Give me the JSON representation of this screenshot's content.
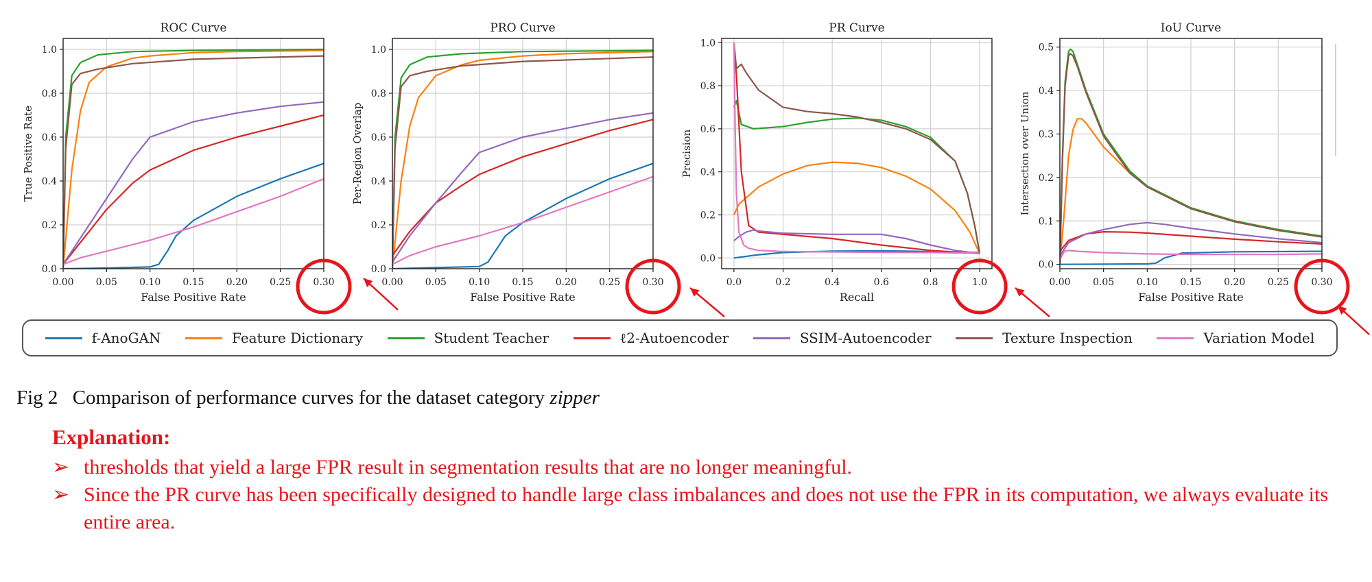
{
  "chart_data": [
    {
      "type": "line",
      "title": "ROC Curve",
      "xlabel": "False Positive Rate",
      "ylabel": "True Positive Rate",
      "xlim": [
        0,
        0.3
      ],
      "ylim": [
        0,
        1.05
      ],
      "xticks": [
        "0.00",
        "0.05",
        "0.10",
        "0.15",
        "0.20",
        "0.25",
        "0.30"
      ],
      "xtick_values": [
        0,
        0.05,
        0.1,
        0.15,
        0.2,
        0.25,
        0.3
      ],
      "yticks": [
        "0.0",
        "0.2",
        "0.4",
        "0.6",
        "0.8",
        "1.0"
      ],
      "ytick_values": [
        0,
        0.2,
        0.4,
        0.6,
        0.8,
        1.0
      ],
      "grid": true,
      "highlight_tick": "0.30",
      "series": [
        {
          "name": "f-AnoGAN",
          "x": [
            0,
            0.05,
            0.1,
            0.11,
            0.12,
            0.13,
            0.15,
            0.2,
            0.25,
            0.3
          ],
          "y": [
            0,
            0.003,
            0.008,
            0.02,
            0.08,
            0.15,
            0.22,
            0.33,
            0.41,
            0.48
          ]
        },
        {
          "name": "Feature Dictionary",
          "x": [
            0,
            0.01,
            0.02,
            0.03,
            0.05,
            0.08,
            0.1,
            0.15,
            0.2,
            0.3
          ],
          "y": [
            0,
            0.45,
            0.72,
            0.85,
            0.92,
            0.96,
            0.97,
            0.985,
            0.99,
            0.995
          ]
        },
        {
          "name": "Student Teacher",
          "x": [
            0,
            0.003,
            0.01,
            0.02,
            0.04,
            0.08,
            0.15,
            0.3
          ],
          "y": [
            0,
            0.6,
            0.88,
            0.94,
            0.975,
            0.99,
            0.995,
            1.0
          ]
        },
        {
          "name": "ℓ2-Autoencoder",
          "x": [
            0,
            0.02,
            0.05,
            0.08,
            0.1,
            0.15,
            0.2,
            0.25,
            0.3
          ],
          "y": [
            0.02,
            0.12,
            0.27,
            0.39,
            0.45,
            0.54,
            0.6,
            0.65,
            0.7
          ]
        },
        {
          "name": "SSIM-Autoencoder",
          "x": [
            0,
            0.02,
            0.05,
            0.08,
            0.1,
            0.15,
            0.2,
            0.25,
            0.3
          ],
          "y": [
            0.02,
            0.14,
            0.32,
            0.5,
            0.6,
            0.67,
            0.71,
            0.74,
            0.76
          ]
        },
        {
          "name": "Texture Inspection",
          "x": [
            0,
            0.003,
            0.01,
            0.02,
            0.04,
            0.08,
            0.15,
            0.3
          ],
          "y": [
            0,
            0.55,
            0.84,
            0.89,
            0.91,
            0.935,
            0.955,
            0.97
          ]
        },
        {
          "name": "Variation Model",
          "x": [
            0,
            0.02,
            0.05,
            0.1,
            0.15,
            0.2,
            0.25,
            0.3
          ],
          "y": [
            0.02,
            0.05,
            0.08,
            0.13,
            0.19,
            0.26,
            0.33,
            0.41
          ]
        }
      ]
    },
    {
      "type": "line",
      "title": "PRO Curve",
      "xlabel": "False Positive Rate",
      "ylabel": "Per-Region Overlap",
      "xlim": [
        0,
        0.3
      ],
      "ylim": [
        0,
        1.05
      ],
      "xticks": [
        "0.00",
        "0.05",
        "0.10",
        "0.15",
        "0.20",
        "0.25",
        "0.30"
      ],
      "xtick_values": [
        0,
        0.05,
        0.1,
        0.15,
        0.2,
        0.25,
        0.3
      ],
      "yticks": [
        "0.0",
        "0.2",
        "0.4",
        "0.6",
        "0.8",
        "1.0"
      ],
      "ytick_values": [
        0,
        0.2,
        0.4,
        0.6,
        0.8,
        1.0
      ],
      "grid": true,
      "highlight_tick": "0.30",
      "series": [
        {
          "name": "f-AnoGAN",
          "x": [
            0,
            0.05,
            0.1,
            0.11,
            0.12,
            0.13,
            0.15,
            0.2,
            0.25,
            0.3
          ],
          "y": [
            0,
            0.005,
            0.01,
            0.03,
            0.09,
            0.15,
            0.21,
            0.32,
            0.41,
            0.48
          ]
        },
        {
          "name": "Feature Dictionary",
          "x": [
            0,
            0.01,
            0.02,
            0.03,
            0.05,
            0.08,
            0.1,
            0.15,
            0.2,
            0.3
          ],
          "y": [
            0,
            0.4,
            0.65,
            0.78,
            0.88,
            0.93,
            0.95,
            0.97,
            0.98,
            0.99
          ]
        },
        {
          "name": "Student Teacher",
          "x": [
            0,
            0.003,
            0.01,
            0.02,
            0.04,
            0.08,
            0.15,
            0.3
          ],
          "y": [
            0,
            0.6,
            0.87,
            0.93,
            0.965,
            0.98,
            0.99,
            0.995
          ]
        },
        {
          "name": "ℓ2-Autoencoder",
          "x": [
            0,
            0.02,
            0.05,
            0.08,
            0.1,
            0.15,
            0.2,
            0.25,
            0.3
          ],
          "y": [
            0.06,
            0.17,
            0.3,
            0.38,
            0.43,
            0.51,
            0.57,
            0.63,
            0.68
          ]
        },
        {
          "name": "SSIM-Autoencoder",
          "x": [
            0,
            0.02,
            0.05,
            0.08,
            0.1,
            0.15,
            0.2,
            0.25,
            0.3
          ],
          "y": [
            0.03,
            0.15,
            0.3,
            0.44,
            0.53,
            0.6,
            0.64,
            0.68,
            0.71
          ]
        },
        {
          "name": "Texture Inspection",
          "x": [
            0,
            0.003,
            0.01,
            0.02,
            0.04,
            0.08,
            0.15,
            0.3
          ],
          "y": [
            0,
            0.55,
            0.83,
            0.88,
            0.9,
            0.925,
            0.945,
            0.965
          ]
        },
        {
          "name": "Variation Model",
          "x": [
            0,
            0.02,
            0.05,
            0.1,
            0.15,
            0.2,
            0.25,
            0.3
          ],
          "y": [
            0.02,
            0.06,
            0.1,
            0.15,
            0.21,
            0.28,
            0.35,
            0.42
          ]
        }
      ]
    },
    {
      "type": "line",
      "title": "PR Curve",
      "xlabel": "Recall",
      "ylabel": "Precision",
      "xlim": [
        -0.05,
        1.05
      ],
      "ylim": [
        -0.05,
        1.02
      ],
      "xticks": [
        "0.0",
        "0.2",
        "0.4",
        "0.6",
        "0.8",
        "1.0"
      ],
      "xtick_values": [
        0,
        0.2,
        0.4,
        0.6,
        0.8,
        1.0
      ],
      "yticks": [
        "0.0",
        "0.2",
        "0.4",
        "0.6",
        "0.8",
        "1.0"
      ],
      "ytick_values": [
        0,
        0.2,
        0.4,
        0.6,
        0.8,
        1.0
      ],
      "grid": true,
      "highlight_tick": "1.0",
      "series": [
        {
          "name": "f-AnoGAN",
          "x": [
            0,
            0.1,
            0.2,
            0.4,
            0.6,
            0.8,
            1.0
          ],
          "y": [
            0,
            0.015,
            0.025,
            0.032,
            0.033,
            0.03,
            0.025
          ]
        },
        {
          "name": "Feature Dictionary",
          "x": [
            0,
            0.02,
            0.1,
            0.2,
            0.3,
            0.4,
            0.5,
            0.6,
            0.7,
            0.8,
            0.9,
            0.96,
            1.0
          ],
          "y": [
            0.2,
            0.25,
            0.33,
            0.39,
            0.43,
            0.445,
            0.44,
            0.42,
            0.38,
            0.32,
            0.22,
            0.12,
            0.02
          ]
        },
        {
          "name": "Student Teacher",
          "x": [
            0,
            0.01,
            0.03,
            0.08,
            0.2,
            0.3,
            0.4,
            0.5,
            0.6,
            0.7,
            0.8,
            0.9,
            0.95,
            0.98,
            1.0
          ],
          "y": [
            0.7,
            0.73,
            0.62,
            0.6,
            0.61,
            0.63,
            0.645,
            0.65,
            0.64,
            0.61,
            0.56,
            0.45,
            0.3,
            0.15,
            0.02
          ]
        },
        {
          "name": "ℓ2-Autoencoder",
          "x": [
            0,
            0.01,
            0.03,
            0.06,
            0.1,
            0.2,
            0.4,
            0.6,
            0.8,
            1.0
          ],
          "y": [
            1.0,
            0.85,
            0.4,
            0.15,
            0.12,
            0.11,
            0.09,
            0.06,
            0.035,
            0.02
          ]
        },
        {
          "name": "SSIM-Autoencoder",
          "x": [
            0,
            0.02,
            0.05,
            0.08,
            0.1,
            0.2,
            0.4,
            0.6,
            0.7,
            0.8,
            0.9,
            1.0
          ],
          "y": [
            0.08,
            0.1,
            0.12,
            0.13,
            0.125,
            0.115,
            0.11,
            0.11,
            0.09,
            0.06,
            0.035,
            0.02
          ]
        },
        {
          "name": "Texture Inspection",
          "x": [
            0,
            0.01,
            0.03,
            0.05,
            0.1,
            0.2,
            0.3,
            0.4,
            0.5,
            0.6,
            0.7,
            0.8,
            0.9,
            0.95,
            0.98,
            1.0
          ],
          "y": [
            1.0,
            0.88,
            0.9,
            0.86,
            0.78,
            0.7,
            0.68,
            0.67,
            0.655,
            0.63,
            0.6,
            0.55,
            0.45,
            0.3,
            0.15,
            0.02
          ]
        },
        {
          "name": "Variation Model",
          "x": [
            0,
            0.005,
            0.01,
            0.02,
            0.04,
            0.06,
            0.1,
            0.2,
            0.4,
            0.6,
            0.8,
            1.0
          ],
          "y": [
            1.0,
            0.6,
            0.3,
            0.12,
            0.06,
            0.045,
            0.035,
            0.03,
            0.028,
            0.026,
            0.025,
            0.022
          ]
        }
      ]
    },
    {
      "type": "line",
      "title": "IoU Curve",
      "xlabel": "False Positive Rate",
      "ylabel": "Intersection over Union",
      "xlim": [
        0,
        0.3
      ],
      "ylim": [
        -0.01,
        0.52
      ],
      "xticks": [
        "0.00",
        "0.05",
        "0.10",
        "0.15",
        "0.20",
        "0.25",
        "0.30"
      ],
      "xtick_values": [
        0,
        0.05,
        0.1,
        0.15,
        0.2,
        0.25,
        0.3
      ],
      "yticks": [
        "0.0",
        "0.1",
        "0.2",
        "0.3",
        "0.4",
        "0.5"
      ],
      "ytick_values": [
        0,
        0.1,
        0.2,
        0.3,
        0.4,
        0.5
      ],
      "grid": true,
      "highlight_tick": "0.30",
      "series": [
        {
          "name": "f-AnoGAN",
          "x": [
            0,
            0.05,
            0.1,
            0.11,
            0.12,
            0.14,
            0.2,
            0.3
          ],
          "y": [
            0,
            0.0005,
            0.001,
            0.003,
            0.015,
            0.026,
            0.029,
            0.03
          ]
        },
        {
          "name": "Feature Dictionary",
          "x": [
            0,
            0.005,
            0.01,
            0.015,
            0.02,
            0.025,
            0.03,
            0.05,
            0.08,
            0.1,
            0.15,
            0.2,
            0.25,
            0.3
          ],
          "y": [
            0,
            0.12,
            0.25,
            0.31,
            0.335,
            0.335,
            0.325,
            0.27,
            0.21,
            0.18,
            0.13,
            0.1,
            0.08,
            0.065
          ]
        },
        {
          "name": "Student Teacher",
          "x": [
            0,
            0.003,
            0.006,
            0.01,
            0.012,
            0.015,
            0.02,
            0.03,
            0.05,
            0.08,
            0.1,
            0.15,
            0.2,
            0.25,
            0.3
          ],
          "y": [
            0,
            0.25,
            0.42,
            0.49,
            0.495,
            0.49,
            0.46,
            0.4,
            0.3,
            0.215,
            0.18,
            0.13,
            0.1,
            0.08,
            0.065
          ]
        },
        {
          "name": "ℓ2-Autoencoder",
          "x": [
            0,
            0.01,
            0.03,
            0.05,
            0.08,
            0.1,
            0.15,
            0.2,
            0.25,
            0.3
          ],
          "y": [
            0.03,
            0.055,
            0.07,
            0.075,
            0.074,
            0.072,
            0.065,
            0.058,
            0.052,
            0.047
          ]
        },
        {
          "name": "SSIM-Autoencoder",
          "x": [
            0,
            0.01,
            0.03,
            0.05,
            0.08,
            0.1,
            0.12,
            0.15,
            0.2,
            0.25,
            0.3
          ],
          "y": [
            0.02,
            0.05,
            0.07,
            0.08,
            0.092,
            0.096,
            0.092,
            0.083,
            0.07,
            0.059,
            0.05
          ]
        },
        {
          "name": "Texture Inspection",
          "x": [
            0,
            0.003,
            0.006,
            0.01,
            0.012,
            0.015,
            0.02,
            0.03,
            0.05,
            0.08,
            0.1,
            0.15,
            0.2,
            0.25,
            0.3
          ],
          "y": [
            0,
            0.24,
            0.41,
            0.48,
            0.485,
            0.48,
            0.455,
            0.395,
            0.295,
            0.21,
            0.178,
            0.128,
            0.098,
            0.078,
            0.063
          ]
        },
        {
          "name": "Variation Model",
          "x": [
            0,
            0.005,
            0.01,
            0.02,
            0.05,
            0.1,
            0.15,
            0.2,
            0.25,
            0.3
          ],
          "y": [
            0.01,
            0.03,
            0.032,
            0.03,
            0.027,
            0.024,
            0.023,
            0.023,
            0.023,
            0.024
          ]
        }
      ]
    }
  ],
  "legend": [
    {
      "name": "f-AnoGAN",
      "color": "#1f77b4"
    },
    {
      "name": "Feature Dictionary",
      "color": "#ff7f0e"
    },
    {
      "name": "Student Teacher",
      "color": "#2ca02c"
    },
    {
      "name": "ℓ2-Autoencoder",
      "color": "#d62728"
    },
    {
      "name": "SSIM-Autoencoder",
      "color": "#9467bd"
    },
    {
      "name": "Texture Inspection",
      "color": "#8c564b"
    },
    {
      "name": "Variation Model",
      "color": "#e377c2"
    }
  ],
  "annotation_color": "#e8141c",
  "caption": {
    "label": "Fig 2",
    "text": "Comparison of performance curves for the dataset category",
    "emphasis": "zipper"
  },
  "explanation": {
    "title": "Explanation:",
    "bullet_icon": "➢",
    "bullets": [
      "thresholds that yield a large FPR result in segmentation results that are no longer meaningful.",
      "Since the PR curve has been specifically designed to handle large class imbalances and does not use the FPR in its computation, we always evaluate its entire area."
    ]
  }
}
